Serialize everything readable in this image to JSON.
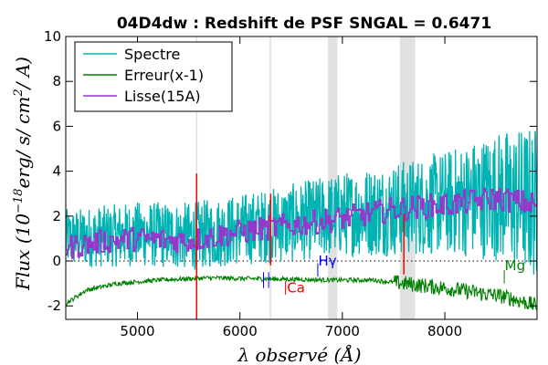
{
  "chart_data": {
    "type": "line",
    "title": "04D4dw : Redshift de PSF SNGAL = 0.6471",
    "xlabel": "λ observé (Å)",
    "ylabel": "Flux (10^-18 erg/s/cm^2/A)",
    "ylabel_parts": {
      "prefix": "Flux (10",
      "exponent": "−18",
      "suffix": "erg/ s/ cm",
      "sq": "2",
      "tail": "/ A)"
    },
    "xlim": [
      4300,
      8900
    ],
    "ylim": [
      -2.6,
      10
    ],
    "x_ticks": [
      5000,
      6000,
      7000,
      8000
    ],
    "y_ticks": [
      -2,
      0,
      2,
      4,
      6,
      8,
      10
    ],
    "x_tick_labels": [
      "5000",
      "6000",
      "7000",
      "8000"
    ],
    "y_tick_labels": [
      "-2",
      "0",
      "2",
      "4",
      "6",
      "8",
      "10"
    ],
    "grid": false,
    "legend_position": "top-left",
    "zero_line": true,
    "series": [
      {
        "name": "Spectre",
        "color": "#00b3b3",
        "trend": [
          [
            4300,
            1.0
          ],
          [
            5000,
            1.2
          ],
          [
            5500,
            1.1
          ],
          [
            6000,
            1.4
          ],
          [
            6500,
            1.7
          ],
          [
            7000,
            2.1
          ],
          [
            7500,
            2.3
          ],
          [
            8000,
            2.6
          ],
          [
            8500,
            2.9
          ],
          [
            8900,
            2.6
          ]
        ],
        "noise": [
          [
            4300,
            0.9
          ],
          [
            5000,
            1.0
          ],
          [
            6000,
            1.1
          ],
          [
            7000,
            1.3
          ],
          [
            8000,
            1.6
          ],
          [
            8500,
            2.0
          ],
          [
            8900,
            2.4
          ]
        ]
      },
      {
        "name": "Erreur(x-1)",
        "color": "#008000",
        "trend": [
          [
            4300,
            -1.9
          ],
          [
            4500,
            -1.3
          ],
          [
            4800,
            -1.0
          ],
          [
            5200,
            -0.85
          ],
          [
            5700,
            -0.75
          ],
          [
            6300,
            -0.8
          ],
          [
            6900,
            -0.85
          ],
          [
            7300,
            -0.85
          ],
          [
            7600,
            -1.0
          ],
          [
            7800,
            -1.1
          ],
          [
            8000,
            -1.2
          ],
          [
            8300,
            -1.4
          ],
          [
            8600,
            -1.6
          ],
          [
            8900,
            -2.0
          ]
        ]
      },
      {
        "name": "Lisse(15A)",
        "color": "#9933cc",
        "trend": [
          [
            4300,
            0.6
          ],
          [
            4700,
            0.9
          ],
          [
            5000,
            1.0
          ],
          [
            5500,
            0.9
          ],
          [
            6000,
            1.3
          ],
          [
            6500,
            1.6
          ],
          [
            7000,
            1.9
          ],
          [
            7500,
            2.3
          ],
          [
            8000,
            2.5
          ],
          [
            8500,
            2.8
          ],
          [
            8900,
            2.5
          ]
        ]
      }
    ],
    "shaded_bands": [
      {
        "x0": 5570,
        "x1": 5585
      },
      {
        "x0": 6290,
        "x1": 6305
      },
      {
        "x0": 6860,
        "x1": 6950
      },
      {
        "x0": 7560,
        "x1": 7710
      }
    ],
    "spikes": [
      {
        "x": 5577,
        "y0": -2.6,
        "y1": 3.9,
        "color": "#ff0000"
      },
      {
        "x": 6300,
        "y0": -0.2,
        "y1": 3.0,
        "color": "#ff0000"
      },
      {
        "x": 7600,
        "y0": -0.6,
        "y1": 2.1,
        "color": "#ff0000"
      }
    ],
    "line_markers": [
      {
        "label": "Ca",
        "color": "#ff0000",
        "xs": [
          6445
        ],
        "y_low": -1.5,
        "y_high": -0.9,
        "text_x": 6460,
        "text_y": -1.4
      },
      {
        "label": "",
        "color": "#0000ff",
        "xs": [
          6230,
          6280
        ],
        "y_low": -1.2,
        "y_high": -0.5,
        "text_x": 6230,
        "text_y": -0.5
      },
      {
        "label": "Hγ",
        "color": "#0000ff",
        "xs": [
          6760
        ],
        "y_low": -0.7,
        "y_high": -0.1,
        "text_x": 6765,
        "text_y": -0.2
      },
      {
        "label": "Mg",
        "color": "#008000",
        "xs": [
          8580
        ],
        "y_low": -1.0,
        "y_high": -0.4,
        "text_x": 8585,
        "text_y": -0.4
      }
    ]
  }
}
